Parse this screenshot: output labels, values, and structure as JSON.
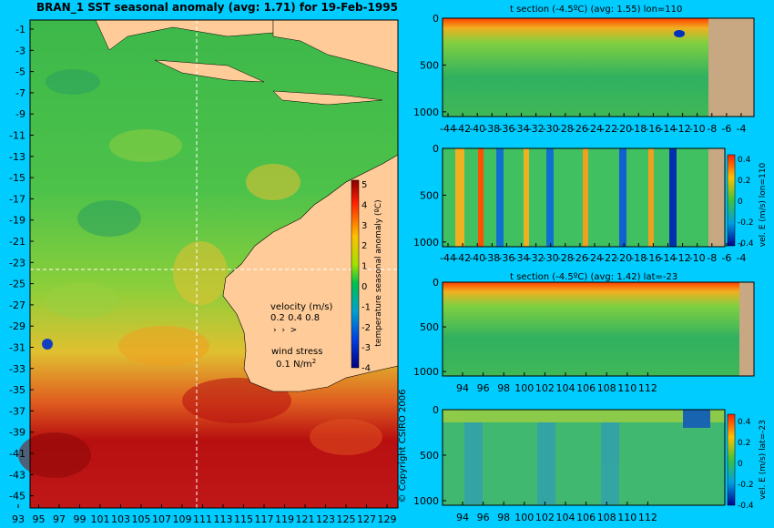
{
  "colors": {
    "background": "#00ccff",
    "land": "#ffcc99",
    "land_section": "#c8a882"
  },
  "main_map": {
    "title": "BRAN_1  SST seasonal anomaly (avg: 1.71) for 19-Feb-1995",
    "yticks": [
      "-1",
      "-3",
      "-5",
      "-7",
      "-9",
      "-11",
      "-13",
      "-15",
      "-17",
      "-19",
      "-21",
      "-23",
      "-25",
      "-27",
      "-29",
      "-31",
      "-33",
      "-35",
      "-37",
      "-39",
      "-41",
      "-43",
      "-45"
    ],
    "xticks": [
      "93",
      "95",
      "97",
      "99",
      "101",
      "103",
      "105",
      "107",
      "109",
      "111",
      "113",
      "115",
      "117",
      "119",
      "121",
      "123",
      "125",
      "127",
      "129"
    ],
    "colorbar": {
      "label": "temperature seasonal anomaly (ºC)",
      "ticks": [
        "5",
        "4",
        "3",
        "2",
        "1",
        "0",
        "-1",
        "-2",
        "-3",
        "-4"
      ]
    },
    "velocity_legend": {
      "title": "velocity (m/s)",
      "values": "0.2 0.4 0.8"
    },
    "wind_legend": {
      "title": "wind stress",
      "value": "0.1 N/m",
      "exp": "2"
    },
    "copyright": "© Copyright CSIRO 2006"
  },
  "chart_data": [
    {
      "type": "heatmap",
      "title": "t section (-4.5ºC) (avg: 1.55) lon=110",
      "xticks": [
        "-44",
        "-42",
        "-40",
        "-38",
        "-36",
        "-34",
        "-32",
        "-30",
        "-28",
        "-26",
        "-24",
        "-22",
        "-20",
        "-18",
        "-16",
        "-14",
        "-12",
        "-10",
        "-8",
        "-6",
        "-4"
      ],
      "yticks": [
        "0",
        "500",
        "1000"
      ],
      "ylim": [
        0,
        1050
      ]
    },
    {
      "type": "heatmap",
      "title": "",
      "xticks": [
        "-44",
        "-42",
        "-40",
        "-38",
        "-36",
        "-34",
        "-32",
        "-30",
        "-28",
        "-26",
        "-24",
        "-22",
        "-20",
        "-18",
        "-16",
        "-14",
        "-12",
        "-10",
        "-8",
        "-6",
        "-4"
      ],
      "yticks": [
        "0",
        "500",
        "1000"
      ],
      "ylim": [
        0,
        1050
      ],
      "colorbar": {
        "label": "vel. E (m/s) lon=110",
        "ticks": [
          "0.4",
          "0.2",
          "0",
          "-0.2",
          "-0.4"
        ]
      }
    },
    {
      "type": "heatmap",
      "title": "t section (-4.5ºC) (avg: 1.42) lat=-23",
      "xticks": [
        "94",
        "96",
        "98",
        "100",
        "102",
        "104",
        "106",
        "108",
        "110",
        "112"
      ],
      "yticks": [
        "0",
        "500",
        "1000"
      ],
      "ylim": [
        0,
        1050
      ]
    },
    {
      "type": "heatmap",
      "title": "",
      "xticks": [
        "94",
        "96",
        "98",
        "100",
        "102",
        "104",
        "106",
        "108",
        "110",
        "112"
      ],
      "yticks": [
        "0",
        "500",
        "1000"
      ],
      "ylim": [
        0,
        1050
      ],
      "colorbar": {
        "label": "vel. E (m/s) lat=-23",
        "ticks": [
          "0.4",
          "0.2",
          "0",
          "-0.2",
          "-0.4"
        ]
      }
    }
  ]
}
